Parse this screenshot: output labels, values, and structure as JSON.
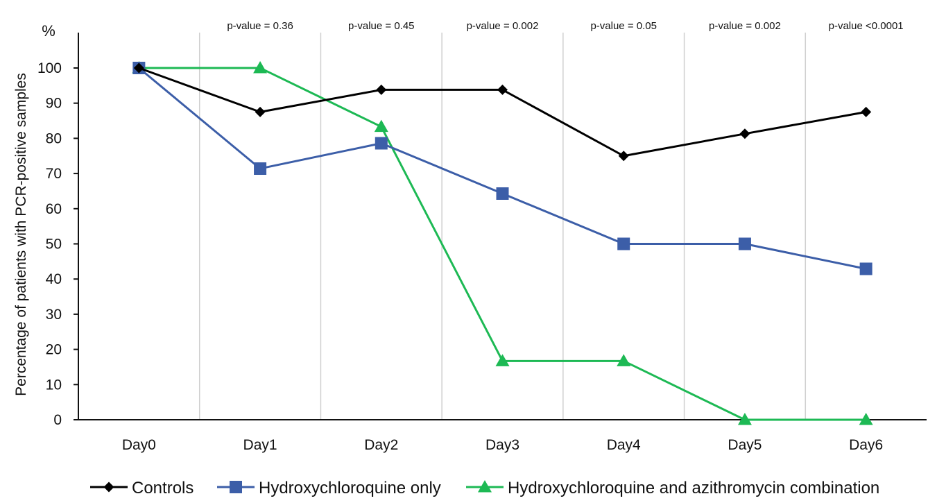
{
  "chart_data": {
    "type": "line",
    "x": [
      "Day0",
      "Day1",
      "Day2",
      "Day3",
      "Day4",
      "Day5",
      "Day6"
    ],
    "ylabel": "Percentage of patients with PCR-positive samples",
    "yunit": "%",
    "ylim": [
      0,
      100
    ],
    "yticks": [
      0,
      10,
      20,
      30,
      40,
      50,
      60,
      70,
      80,
      90,
      100
    ],
    "grid": "vertical",
    "legend_position": "bottom",
    "p_values": [
      {
        "after": "Day1",
        "label": "p-value = 0.36"
      },
      {
        "after": "Day2",
        "label": "p-value = 0.45"
      },
      {
        "after": "Day3",
        "label": "p-value = 0.002"
      },
      {
        "after": "Day4",
        "label": "p-value = 0.05"
      },
      {
        "after": "Day5",
        "label": "p-value = 0.002"
      },
      {
        "after": "Day6",
        "label": "p-value <0.0001"
      }
    ],
    "series": [
      {
        "name": "Controls",
        "marker": "diamond",
        "color": "#000000",
        "values": [
          100,
          87.5,
          93.8,
          93.8,
          75.0,
          81.3,
          87.5
        ]
      },
      {
        "name": "Hydroxychloroquine only",
        "marker": "square",
        "color": "#3c5ea8",
        "values": [
          100,
          71.4,
          78.6,
          64.3,
          50.0,
          50.0,
          42.9
        ]
      },
      {
        "name": "Hydroxychloroquine and azithromycin combination",
        "marker": "triangle",
        "color": "#1db954",
        "values": [
          100,
          100,
          83.3,
          16.7,
          16.7,
          0,
          0
        ]
      }
    ]
  }
}
